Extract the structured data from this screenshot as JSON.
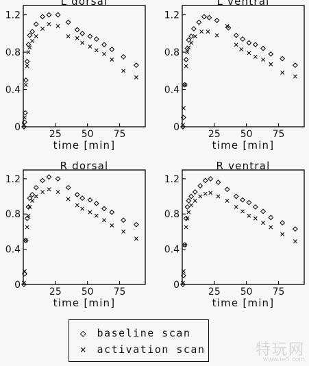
{
  "chart_data": [
    {
      "type": "scatter",
      "title": "L dorsal",
      "xlabel": "time [min]",
      "ylabel": "",
      "xlim": [
        0,
        95
      ],
      "ylim": [
        0,
        1.3
      ],
      "xticks": [
        25,
        50,
        75
      ],
      "yticks": [
        0,
        0.4,
        0.8,
        1.2
      ],
      "series": [
        {
          "name": "baseline scan",
          "marker": "diamond",
          "points": [
            [
              0.5,
              0.0
            ],
            [
              1,
              0.05
            ],
            [
              1.5,
              0.15
            ],
            [
              2,
              0.5
            ],
            [
              3,
              0.7
            ],
            [
              4,
              0.88
            ],
            [
              5,
              0.98
            ],
            [
              7,
              1.02
            ],
            [
              10,
              1.1
            ],
            [
              15,
              1.18
            ],
            [
              20,
              1.2
            ],
            [
              27,
              1.2
            ],
            [
              35,
              1.12
            ],
            [
              42,
              1.04
            ],
            [
              46,
              1.0
            ],
            [
              52,
              0.97
            ],
            [
              57,
              0.94
            ],
            [
              63,
              0.88
            ],
            [
              69,
              0.83
            ],
            [
              78,
              0.75
            ],
            [
              88,
              0.66
            ]
          ]
        },
        {
          "name": "activation scan",
          "marker": "cross",
          "points": [
            [
              0.5,
              0.02
            ],
            [
              1,
              0.1
            ],
            [
              2,
              0.45
            ],
            [
              3,
              0.65
            ],
            [
              4,
              0.8
            ],
            [
              5,
              0.85
            ],
            [
              7,
              0.92
            ],
            [
              10,
              0.97
            ],
            [
              15,
              1.05
            ],
            [
              20,
              1.1
            ],
            [
              27,
              1.08
            ],
            [
              35,
              0.97
            ],
            [
              42,
              0.95
            ],
            [
              46,
              0.9
            ],
            [
              52,
              0.86
            ],
            [
              57,
              0.82
            ],
            [
              63,
              0.78
            ],
            [
              69,
              0.72
            ],
            [
              78,
              0.6
            ],
            [
              88,
              0.53
            ]
          ]
        }
      ]
    },
    {
      "type": "scatter",
      "title": "L ventral",
      "xlabel": "time [min]",
      "ylabel": "",
      "xlim": [
        0,
        95
      ],
      "ylim": [
        0,
        1.3
      ],
      "xticks": [
        25,
        50,
        75
      ],
      "yticks": [
        0,
        0.4,
        0.8,
        1.2
      ],
      "series": [
        {
          "name": "baseline scan",
          "marker": "diamond",
          "points": [
            [
              0.5,
              0.0
            ],
            [
              1,
              0.1
            ],
            [
              2,
              0.45
            ],
            [
              3,
              0.72
            ],
            [
              4,
              0.84
            ],
            [
              5,
              0.93
            ],
            [
              7,
              0.97
            ],
            [
              9,
              1.05
            ],
            [
              13,
              1.12
            ],
            [
              17,
              1.18
            ],
            [
              21,
              1.17
            ],
            [
              27,
              1.14
            ],
            [
              36,
              1.06
            ],
            [
              42,
              0.98
            ],
            [
              47,
              0.94
            ],
            [
              52,
              0.9
            ],
            [
              57,
              0.88
            ],
            [
              63,
              0.84
            ],
            [
              69,
              0.78
            ],
            [
              78,
              0.73
            ],
            [
              88,
              0.66
            ]
          ]
        },
        {
          "name": "activation scan",
          "marker": "cross",
          "points": [
            [
              0.5,
              0.02
            ],
            [
              1,
              0.2
            ],
            [
              2,
              0.45
            ],
            [
              3,
              0.65
            ],
            [
              4,
              0.8
            ],
            [
              5,
              0.85
            ],
            [
              7,
              0.9
            ],
            [
              10,
              0.97
            ],
            [
              15,
              1.02
            ],
            [
              20,
              1.02
            ],
            [
              27,
              0.98
            ],
            [
              35,
              1.08
            ],
            [
              42,
              0.88
            ],
            [
              46,
              0.83
            ],
            [
              52,
              0.79
            ],
            [
              57,
              0.75
            ],
            [
              63,
              0.72
            ],
            [
              69,
              0.67
            ],
            [
              78,
              0.58
            ],
            [
              88,
              0.54
            ]
          ]
        }
      ]
    },
    {
      "type": "scatter",
      "title": "R dorsal",
      "xlabel": "time [min]",
      "ylabel": "",
      "xlim": [
        0,
        95
      ],
      "ylim": [
        0,
        1.3
      ],
      "xticks": [
        25,
        50,
        75
      ],
      "yticks": [
        0,
        0.4,
        0.8,
        1.2
      ],
      "series": [
        {
          "name": "baseline scan",
          "marker": "diamond",
          "points": [
            [
              0.5,
              0.0
            ],
            [
              1,
              0.12
            ],
            [
              2,
              0.5
            ],
            [
              3,
              0.75
            ],
            [
              4,
              0.88
            ],
            [
              5,
              0.98
            ],
            [
              7,
              1.02
            ],
            [
              10,
              1.1
            ],
            [
              15,
              1.18
            ],
            [
              20,
              1.22
            ],
            [
              27,
              1.2
            ],
            [
              35,
              1.1
            ],
            [
              42,
              1.02
            ],
            [
              46,
              0.98
            ],
            [
              52,
              0.96
            ],
            [
              57,
              0.92
            ],
            [
              63,
              0.86
            ],
            [
              69,
              0.82
            ],
            [
              78,
              0.73
            ],
            [
              88,
              0.68
            ]
          ]
        },
        {
          "name": "activation scan",
          "marker": "cross",
          "points": [
            [
              0.5,
              0.02
            ],
            [
              1,
              0.15
            ],
            [
              2,
              0.5
            ],
            [
              3,
              0.65
            ],
            [
              4,
              0.78
            ],
            [
              5,
              0.88
            ],
            [
              7,
              0.95
            ],
            [
              10,
              1.0
            ],
            [
              15,
              1.05
            ],
            [
              20,
              1.08
            ],
            [
              27,
              1.05
            ],
            [
              35,
              0.97
            ],
            [
              42,
              0.9
            ],
            [
              46,
              0.86
            ],
            [
              52,
              0.82
            ],
            [
              57,
              0.78
            ],
            [
              63,
              0.73
            ],
            [
              69,
              0.67
            ],
            [
              78,
              0.6
            ],
            [
              88,
              0.52
            ]
          ]
        }
      ]
    },
    {
      "type": "scatter",
      "title": "R ventral",
      "xlabel": "time [min]",
      "ylabel": "",
      "xlim": [
        0,
        95
      ],
      "ylim": [
        0,
        1.3
      ],
      "xticks": [
        25,
        50,
        75
      ],
      "yticks": [
        0,
        0.4,
        0.8,
        1.2
      ],
      "series": [
        {
          "name": "baseline scan",
          "marker": "diamond",
          "points": [
            [
              0.5,
              0.0
            ],
            [
              1,
              0.1
            ],
            [
              2,
              0.45
            ],
            [
              3,
              0.75
            ],
            [
              4,
              0.88
            ],
            [
              5,
              0.95
            ],
            [
              7,
              1.0
            ],
            [
              10,
              1.05
            ],
            [
              14,
              1.12
            ],
            [
              18,
              1.18
            ],
            [
              22,
              1.2
            ],
            [
              28,
              1.16
            ],
            [
              35,
              1.08
            ],
            [
              42,
              1.0
            ],
            [
              47,
              0.96
            ],
            [
              52,
              0.93
            ],
            [
              57,
              0.88
            ],
            [
              63,
              0.83
            ],
            [
              69,
              0.76
            ],
            [
              78,
              0.7
            ],
            [
              88,
              0.63
            ]
          ]
        },
        {
          "name": "activation scan",
          "marker": "cross",
          "points": [
            [
              0.5,
              0.02
            ],
            [
              1,
              0.15
            ],
            [
              2,
              0.45
            ],
            [
              3,
              0.65
            ],
            [
              4,
              0.75
            ],
            [
              5,
              0.82
            ],
            [
              7,
              0.9
            ],
            [
              10,
              0.95
            ],
            [
              14,
              1.0
            ],
            [
              18,
              1.03
            ],
            [
              22,
              1.04
            ],
            [
              28,
              1.0
            ],
            [
              35,
              0.95
            ],
            [
              42,
              0.88
            ],
            [
              47,
              0.83
            ],
            [
              52,
              0.78
            ],
            [
              57,
              0.75
            ],
            [
              63,
              0.7
            ],
            [
              69,
              0.65
            ],
            [
              78,
              0.57
            ],
            [
              88,
              0.49
            ]
          ]
        }
      ]
    }
  ],
  "legend": {
    "baseline_label": "baseline scan",
    "activation_label": "activation scan",
    "baseline_symbol": "◇",
    "activation_symbol": "×"
  },
  "watermark": {
    "text": "特玩网",
    "sub": "www.te5.com"
  },
  "colors": {
    "ink": "#111111",
    "paper": "#f7f7f5"
  }
}
